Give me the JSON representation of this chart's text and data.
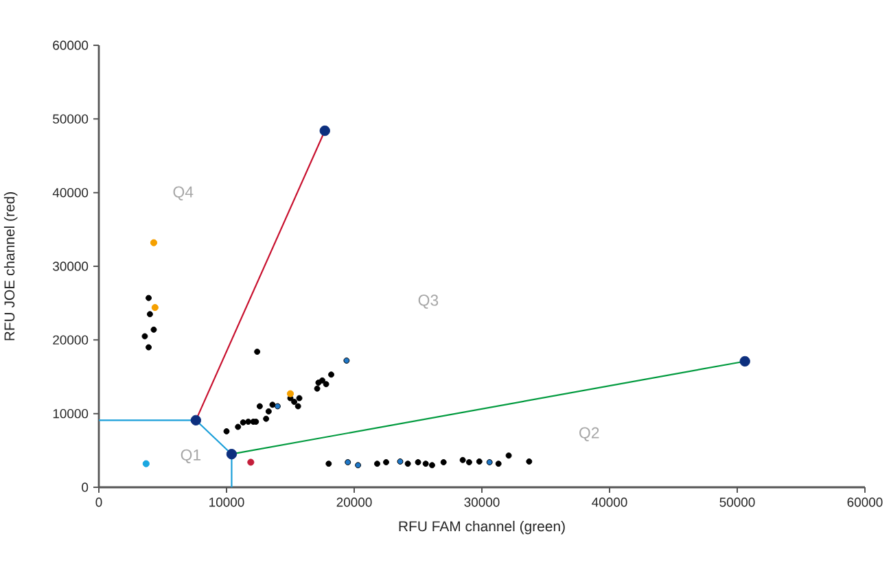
{
  "chart_data": {
    "type": "scatter",
    "xlabel": "RFU FAM channel (green)",
    "ylabel": "RFU JOE channel (red)",
    "xlim": [
      0,
      60000
    ],
    "ylim": [
      0,
      60000
    ],
    "xticks": [
      0,
      10000,
      20000,
      30000,
      40000,
      50000,
      60000
    ],
    "yticks": [
      0,
      10000,
      20000,
      30000,
      40000,
      50000,
      60000
    ],
    "grid": false,
    "series": [
      {
        "type": "line",
        "color": "#1a9fd9",
        "x": [
          0,
          7600,
          10400,
          10400
        ],
        "values": [
          9100,
          9100,
          4500,
          0
        ]
      },
      {
        "type": "line",
        "color": "#c8102e",
        "x": [
          7600,
          17700
        ],
        "values": [
          9100,
          48400
        ]
      },
      {
        "type": "line",
        "color": "#009a3e",
        "x": [
          10400,
          50600
        ],
        "values": [
          4500,
          17100
        ]
      },
      {
        "color": "#000000",
        "x": [
          3900,
          4000,
          4300,
          3600,
          3900,
          12400,
          10000,
          10900,
          11300,
          11700,
          12100,
          12300,
          12600,
          13100,
          13300,
          13600,
          15000,
          15300,
          15600,
          15700,
          17100,
          17200,
          17500,
          17800,
          18200,
          18000,
          21800,
          22500,
          24200,
          25000,
          25600,
          26100,
          27000,
          28500,
          29000,
          29800,
          31300,
          32100,
          33700
        ],
        "values": [
          25700,
          23500,
          21400,
          20500,
          19000,
          18400,
          7600,
          8200,
          8800,
          8900,
          8900,
          8900,
          11000,
          9300,
          10300,
          11200,
          12100,
          11600,
          11000,
          12100,
          13400,
          14200,
          14500,
          14000,
          15300,
          3200,
          3200,
          3400,
          3200,
          3400,
          3200,
          3000,
          3400,
          3700,
          3400,
          3500,
          3200,
          4300,
          3500
        ]
      },
      {
        "color": "#1f78c8",
        "x": [
          14000,
          19400,
          19500,
          20300,
          23600,
          30600
        ],
        "values": [
          11000,
          17200,
          3400,
          3000,
          3500,
          3400
        ]
      },
      {
        "color": "#f5a000",
        "x": [
          4300,
          4400,
          15000
        ],
        "values": [
          33200,
          24400,
          12700
        ]
      },
      {
        "color": "#1aa7e0",
        "x": [
          3700
        ],
        "values": [
          3200
        ]
      },
      {
        "color": "#c41e3a",
        "x": [
          11900
        ],
        "values": [
          3400
        ]
      },
      {
        "color": "#0d2f7e",
        "x": [
          7600,
          10400,
          17700,
          50600
        ],
        "values": [
          9100,
          4500,
          48400,
          17100
        ]
      }
    ],
    "annotations": [
      "Q1",
      "Q2",
      "Q3",
      "Q4"
    ]
  }
}
